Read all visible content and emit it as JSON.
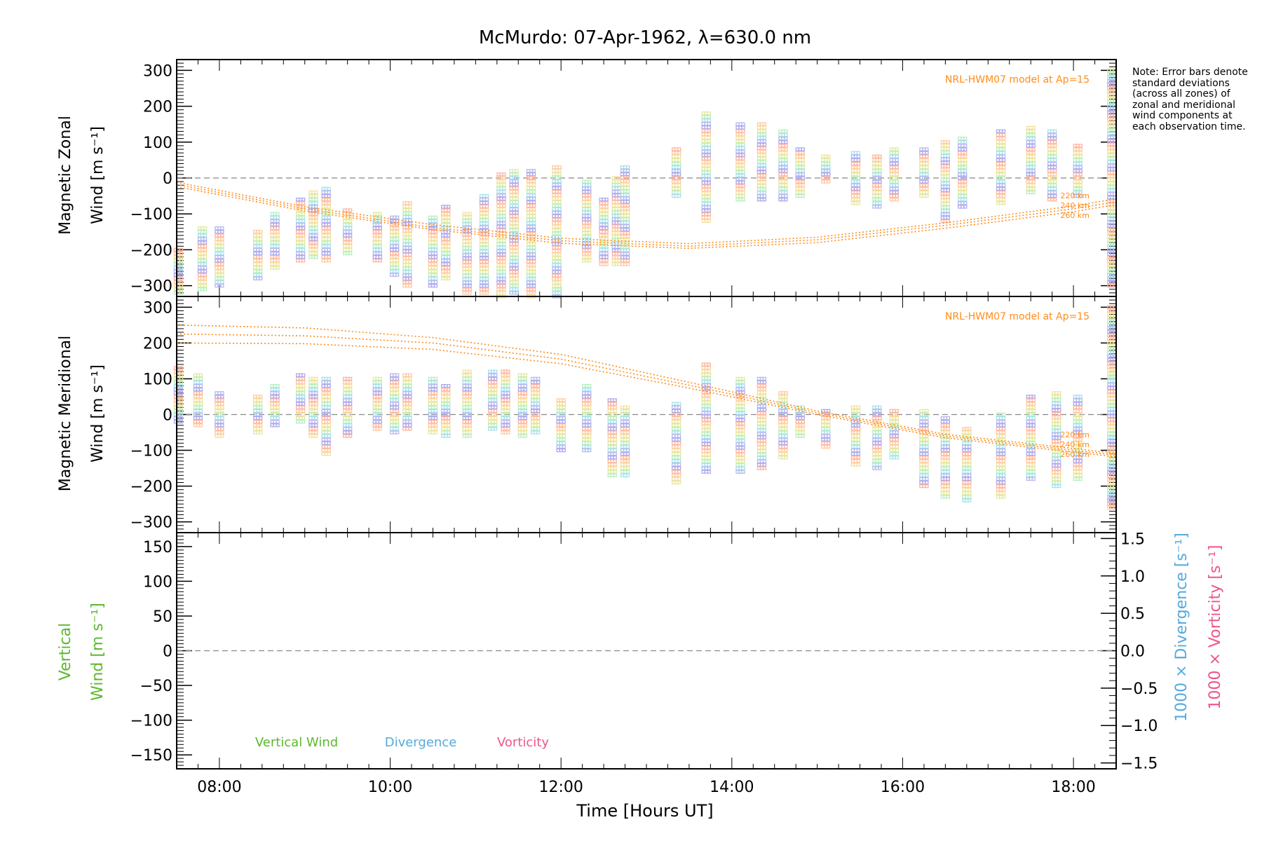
{
  "title": "McMurdo: 07-Apr-1962, λ=630.0 nm",
  "note": "Note: Error bars denote standard deviations (across all zones) of zonal and meridional wind components at each observation time.",
  "colors": {
    "model": "#ff8c1a",
    "vertical": "#5cb82e",
    "divergence": "#55aadd",
    "vorticity": "#ee5588",
    "zero_line": "#888888",
    "point_palette": [
      "#ffb3a0",
      "#ffc8a0",
      "#f5e0a0",
      "#e0eaa0",
      "#b8eec0",
      "#a8e0ee",
      "#b8b8ee",
      "#aaaaee"
    ]
  },
  "chart_data": [
    {
      "panel": "zonal",
      "type": "scatter",
      "ylabel_line1": "Magnetic Zonal",
      "ylabel_line2": "Wind [m s⁻¹]",
      "ylim": [
        -330,
        330
      ],
      "yticks": [
        "300",
        "200",
        "100",
        "0",
        "−100",
        "−200",
        "−300"
      ],
      "ytick_values": [
        300,
        200,
        100,
        0,
        -100,
        -200,
        -300
      ],
      "xlim": [
        7.5,
        18.5
      ],
      "model_label": "NRL-HWM07 model at Ap=15",
      "model_heights": [
        "220 km",
        "240 km",
        "260 km"
      ],
      "model_series": [
        {
          "name": "220 km",
          "x": [
            7.5,
            9,
            10.5,
            12,
            13.5,
            15,
            16.5,
            18,
            18.5
          ],
          "y": [
            -12,
            -80,
            -130,
            -168,
            -183,
            -165,
            -125,
            -78,
            -58
          ]
        },
        {
          "name": "240 km",
          "x": [
            7.5,
            9,
            10.5,
            12,
            13.5,
            15,
            16.5,
            18,
            18.5
          ],
          "y": [
            -18,
            -86,
            -138,
            -175,
            -190,
            -172,
            -132,
            -86,
            -66
          ]
        },
        {
          "name": "260 km",
          "x": [
            7.5,
            9,
            10.5,
            12,
            13.5,
            15,
            16.5,
            18,
            18.5
          ],
          "y": [
            -24,
            -92,
            -144,
            -182,
            -196,
            -180,
            -140,
            -94,
            -74
          ]
        }
      ],
      "observations": [
        {
          "x": 7.52,
          "ymin": -320,
          "ymax": -200
        },
        {
          "x": 7.8,
          "ymin": -310,
          "ymax": -140
        },
        {
          "x": 8.0,
          "ymin": -300,
          "ymax": -140
        },
        {
          "x": 8.45,
          "ymin": -280,
          "ymax": -150
        },
        {
          "x": 8.65,
          "ymin": -250,
          "ymax": -100
        },
        {
          "x": 8.95,
          "ymin": -230,
          "ymax": -60
        },
        {
          "x": 9.1,
          "ymin": -220,
          "ymax": -40
        },
        {
          "x": 9.25,
          "ymin": -230,
          "ymax": -30
        },
        {
          "x": 9.5,
          "ymin": -210,
          "ymax": -90
        },
        {
          "x": 9.85,
          "ymin": -230,
          "ymax": -100
        },
        {
          "x": 10.05,
          "ymin": -270,
          "ymax": -110
        },
        {
          "x": 10.2,
          "ymin": -300,
          "ymax": -70
        },
        {
          "x": 10.5,
          "ymin": -300,
          "ymax": -110
        },
        {
          "x": 10.65,
          "ymin": -280,
          "ymax": -80
        },
        {
          "x": 10.9,
          "ymin": -320,
          "ymax": -100
        },
        {
          "x": 11.1,
          "ymin": -320,
          "ymax": -50
        },
        {
          "x": 11.3,
          "ymin": -330,
          "ymax": 10
        },
        {
          "x": 11.45,
          "ymin": -320,
          "ymax": 20
        },
        {
          "x": 11.65,
          "ymin": -330,
          "ymax": 20
        },
        {
          "x": 11.95,
          "ymin": -330,
          "ymax": 30
        },
        {
          "x": 12.3,
          "ymin": -230,
          "ymax": -10
        },
        {
          "x": 12.5,
          "ymin": -240,
          "ymax": -60
        },
        {
          "x": 12.65,
          "ymin": -240,
          "ymax": 0
        },
        {
          "x": 12.75,
          "ymin": -240,
          "ymax": 30
        },
        {
          "x": 13.35,
          "ymin": -50,
          "ymax": 80
        },
        {
          "x": 13.7,
          "ymin": -120,
          "ymax": 180
        },
        {
          "x": 14.1,
          "ymin": -60,
          "ymax": 150
        },
        {
          "x": 14.35,
          "ymin": -60,
          "ymax": 150
        },
        {
          "x": 14.6,
          "ymin": -60,
          "ymax": 130
        },
        {
          "x": 14.8,
          "ymin": -50,
          "ymax": 80
        },
        {
          "x": 15.1,
          "ymin": -10,
          "ymax": 60
        },
        {
          "x": 15.45,
          "ymin": -70,
          "ymax": 70
        },
        {
          "x": 15.7,
          "ymin": -80,
          "ymax": 60
        },
        {
          "x": 15.9,
          "ymin": -60,
          "ymax": 80
        },
        {
          "x": 16.25,
          "ymin": -50,
          "ymax": 80
        },
        {
          "x": 16.5,
          "ymin": -120,
          "ymax": 100
        },
        {
          "x": 16.7,
          "ymin": -80,
          "ymax": 110
        },
        {
          "x": 17.15,
          "ymin": -70,
          "ymax": 130
        },
        {
          "x": 17.5,
          "ymin": -40,
          "ymax": 140
        },
        {
          "x": 17.75,
          "ymin": -60,
          "ymax": 130
        },
        {
          "x": 18.05,
          "ymin": -50,
          "ymax": 90
        },
        {
          "x": 18.45,
          "ymin": -300,
          "ymax": 300
        }
      ]
    },
    {
      "panel": "meridional",
      "type": "scatter",
      "ylabel_line1": "Magnetic Meridional",
      "ylabel_line2": "Wind [m s⁻¹]",
      "ylim": [
        -330,
        330
      ],
      "yticks": [
        "300",
        "200",
        "100",
        "0",
        "−100",
        "−200",
        "−300"
      ],
      "ytick_values": [
        300,
        200,
        100,
        0,
        -100,
        -200,
        -300
      ],
      "xlim": [
        7.5,
        18.5
      ],
      "model_label": "NRL-HWM07 model at Ap=15",
      "model_heights": [
        "220 km",
        "240 km",
        "260 km"
      ],
      "model_series": [
        {
          "name": "220 km",
          "x": [
            7.5,
            9,
            10.5,
            12,
            13.5,
            15,
            16.5,
            18,
            18.5
          ],
          "y": [
            250,
            242,
            215,
            168,
            90,
            10,
            -55,
            -95,
            -108
          ]
        },
        {
          "name": "240 km",
          "x": [
            7.5,
            9,
            10.5,
            12,
            13.5,
            15,
            16.5,
            18,
            18.5
          ],
          "y": [
            225,
            220,
            200,
            155,
            82,
            5,
            -60,
            -100,
            -113
          ]
        },
        {
          "name": "260 km",
          "x": [
            7.5,
            9,
            10.5,
            12,
            13.5,
            15,
            16.5,
            18,
            18.5
          ],
          "y": [
            200,
            198,
            182,
            142,
            74,
            0,
            -65,
            -105,
            -118
          ]
        }
      ],
      "observations": [
        {
          "x": 7.52,
          "ymin": -20,
          "ymax": 130
        },
        {
          "x": 7.75,
          "ymin": -30,
          "ymax": 110
        },
        {
          "x": 8.0,
          "ymin": -60,
          "ymax": 60
        },
        {
          "x": 8.45,
          "ymin": -50,
          "ymax": 50
        },
        {
          "x": 8.65,
          "ymin": -30,
          "ymax": 80
        },
        {
          "x": 8.95,
          "ymin": -20,
          "ymax": 110
        },
        {
          "x": 9.1,
          "ymin": -60,
          "ymax": 100
        },
        {
          "x": 9.25,
          "ymin": -110,
          "ymax": 100
        },
        {
          "x": 9.5,
          "ymin": -60,
          "ymax": 100
        },
        {
          "x": 9.85,
          "ymin": -40,
          "ymax": 100
        },
        {
          "x": 10.05,
          "ymin": -50,
          "ymax": 110
        },
        {
          "x": 10.2,
          "ymin": -40,
          "ymax": 110
        },
        {
          "x": 10.5,
          "ymin": -50,
          "ymax": 100
        },
        {
          "x": 10.65,
          "ymin": -60,
          "ymax": 80
        },
        {
          "x": 10.9,
          "ymin": -60,
          "ymax": 120
        },
        {
          "x": 11.2,
          "ymin": -40,
          "ymax": 120
        },
        {
          "x": 11.35,
          "ymin": -50,
          "ymax": 120
        },
        {
          "x": 11.55,
          "ymin": -60,
          "ymax": 110
        },
        {
          "x": 11.7,
          "ymin": -50,
          "ymax": 100
        },
        {
          "x": 12.0,
          "ymin": -100,
          "ymax": 40
        },
        {
          "x": 12.3,
          "ymin": -100,
          "ymax": 80
        },
        {
          "x": 12.6,
          "ymin": -170,
          "ymax": 40
        },
        {
          "x": 12.75,
          "ymin": -170,
          "ymax": 20
        },
        {
          "x": 13.35,
          "ymin": -190,
          "ymax": 30
        },
        {
          "x": 13.7,
          "ymin": -160,
          "ymax": 140
        },
        {
          "x": 14.1,
          "ymin": -160,
          "ymax": 100
        },
        {
          "x": 14.35,
          "ymin": -150,
          "ymax": 100
        },
        {
          "x": 14.6,
          "ymin": -120,
          "ymax": 60
        },
        {
          "x": 14.8,
          "ymin": -60,
          "ymax": 20
        },
        {
          "x": 15.1,
          "ymin": -90,
          "ymax": 10
        },
        {
          "x": 15.45,
          "ymin": -140,
          "ymax": 20
        },
        {
          "x": 15.7,
          "ymin": -150,
          "ymax": 20
        },
        {
          "x": 15.9,
          "ymin": -120,
          "ymax": 10
        },
        {
          "x": 16.25,
          "ymin": -200,
          "ymax": 10
        },
        {
          "x": 16.5,
          "ymin": -230,
          "ymax": -10
        },
        {
          "x": 16.75,
          "ymin": -240,
          "ymax": -40
        },
        {
          "x": 17.15,
          "ymin": -230,
          "ymax": 0
        },
        {
          "x": 17.5,
          "ymin": -180,
          "ymax": 50
        },
        {
          "x": 17.8,
          "ymin": -200,
          "ymax": 60
        },
        {
          "x": 18.05,
          "ymin": -180,
          "ymax": 50
        },
        {
          "x": 18.45,
          "ymin": -260,
          "ymax": 300
        }
      ]
    },
    {
      "panel": "vertical",
      "type": "line",
      "ylabel_line1": "Vertical",
      "ylabel_line2": "Wind [m s⁻¹]",
      "ylim": [
        -170,
        170
      ],
      "yticks": [
        "150",
        "100",
        "50",
        "0",
        "−50",
        "−100",
        "−150"
      ],
      "ytick_values": [
        150,
        100,
        50,
        0,
        -50,
        -100,
        -150
      ],
      "y2label_divergence": "1000 × Divergence [s⁻¹]",
      "y2label_vorticity": "1000 × Vorticity [s⁻¹]",
      "y2lim": [
        -1.5,
        1.5
      ],
      "y2ticks": [
        "1.5",
        "1.0",
        "0.5",
        "0.0",
        "−0.5",
        "−1.0",
        "−1.5"
      ],
      "y2tick_values": [
        1.5,
        1.0,
        0.5,
        0.0,
        -0.5,
        -1.0,
        -1.5
      ],
      "xlim": [
        7.5,
        18.5
      ],
      "xlabel": "Time [Hours UT]",
      "xticks": [
        "08:00",
        "10:00",
        "12:00",
        "14:00",
        "16:00",
        "18:00"
      ],
      "xtick_values": [
        8,
        10,
        12,
        14,
        16,
        18
      ],
      "legend": [
        "Vertical Wind",
        "Divergence",
        "Vorticity"
      ],
      "legend_placement": "bottom-left inside",
      "series": []
    }
  ]
}
